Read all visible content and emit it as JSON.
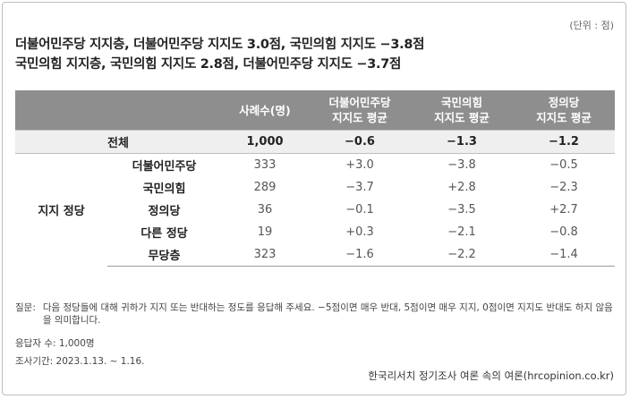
{
  "unit": "(단위 : 점)",
  "headline": {
    "line1": "더불어민주당 지지층, 더불어민주당 지지도 3.0점, 국민의힘 지지도 −3.8점",
    "line2": "국민의힘 지지층, 국민의힘 지지도 2.8점, 더불어민주당 지지도 −3.7점"
  },
  "table": {
    "headers": {
      "blank": "",
      "count": "사례수(명)",
      "dem_1": "더불어민주당",
      "dem_2": "지지도 평균",
      "ppp_1": "국민의힘",
      "ppp_2": "지지도 평균",
      "jus_1": "정의당",
      "jus_2": "지지도 평균"
    },
    "total": {
      "label": "전체",
      "count": "1,000",
      "dem": "−0.6",
      "ppp": "−1.3",
      "jus": "−1.2"
    },
    "group_label": "지지 정당",
    "rows": [
      {
        "label": "더불어민주당",
        "count": "333",
        "dem": "+3.0",
        "ppp": "−3.8",
        "jus": "−0.5"
      },
      {
        "label": "국민의힘",
        "count": "289",
        "dem": "−3.7",
        "ppp": "+2.8",
        "jus": "−2.3"
      },
      {
        "label": "정의당",
        "count": "36",
        "dem": "−0.1",
        "ppp": "−3.5",
        "jus": "+2.7"
      },
      {
        "label": "다른 정당",
        "count": "19",
        "dem": "+0.3",
        "ppp": "−2.1",
        "jus": "−0.8"
      },
      {
        "label": "무당층",
        "count": "323",
        "dem": "−1.6",
        "ppp": "−2.2",
        "jus": "−1.4"
      }
    ]
  },
  "notes": {
    "question_label": "질문:",
    "question_text": "다음 정당들에 대해 귀하가 지지 또는 반대하는 정도를 응답해 주세요. −5점이면 매우 반대, 5점이면 매우 지지, 0점이면 지지도 반대도 하지 않음을 의미합니다.",
    "respondents": "응답자 수: 1,000명",
    "period": "조사기간: 2023.1.13. ~ 1.16.",
    "source": "한국리서치 정기조사 여론 속의 여론(hrcopinion.co.kr)"
  }
}
